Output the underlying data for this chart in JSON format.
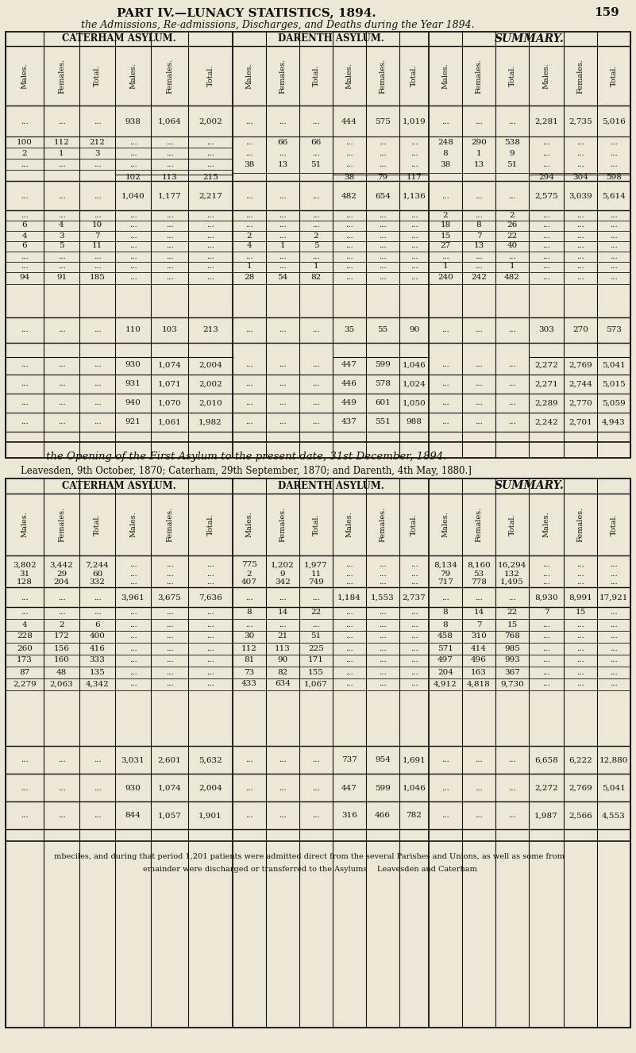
{
  "bg": "#ede8d5",
  "lc": "#111111",
  "title": "PART IV.—LUNACY STATISTICS, 1894.",
  "page_num": "159",
  "sub_italic": "the Admissions, Re-admissions, Discharges, and Deaths during the Year 1894.",
  "between1": "the Opening of the First Asylum to the present date, 31st December, 1894.",
  "between2": "Leavesden, 9th October, 1870; Caterham, 29th September, 1870; and Darenth, 4th May, 1880.]",
  "footer1": "mbeciles, and during that period 1,201 patients were admitted direct from the several Parishes and Unions, as well as some from",
  "footer2": "emainder were discharged or transferred to the Asylums    Leavesden and Caterham",
  "CAT": "CATERHAM ASYLUM.",
  "DAR": "DARENTH ASYLUM.",
  "SUM": "SUMMARY.",
  "col3": [
    "Males.",
    "Females.",
    "Total."
  ],
  "D": "...",
  "top": {
    "r1": [
      "...",
      "...",
      "...",
      "938",
      "1,064",
      "2,002",
      "...",
      "...",
      "...",
      "444",
      "575",
      "1,019",
      "...",
      "...",
      "...",
      "2,281",
      "2,735",
      "5,016"
    ],
    "r2a": [
      "100",
      "112",
      "212",
      "...",
      "...",
      "...",
      "...",
      "66",
      "66",
      "...",
      "...",
      "...",
      "248",
      "290",
      "538",
      "...",
      "...",
      "..."
    ],
    "r2b": [
      "2",
      "1",
      "3",
      "...",
      "...",
      "...",
      "...",
      "...",
      "...",
      "...",
      "...",
      "...",
      "8",
      "1",
      "9",
      "...",
      "...",
      "..."
    ],
    "r2c": [
      "...",
      "...",
      "...",
      "...",
      "...",
      "...",
      "38",
      "13",
      "51",
      "...",
      "...",
      "...",
      "38",
      "13",
      "51",
      "...",
      "...",
      "..."
    ],
    "r2d": [
      "",
      "",
      "",
      "102",
      "113",
      "215",
      "",
      "",
      "",
      "38",
      "79",
      "117",
      "",
      "",
      "",
      "294",
      "304",
      "598"
    ],
    "r3": [
      "...",
      "...",
      "...",
      "1,040",
      "1,177",
      "2,217",
      "...",
      "...",
      "...",
      "482",
      "654",
      "1,136",
      "...",
      "...",
      "...",
      "2,575",
      "3,039",
      "5,614"
    ],
    "r4a": [
      "...",
      "...",
      "...",
      "...",
      "...",
      "...",
      "...",
      "...",
      "...",
      "...",
      "...",
      "...",
      "2",
      "...",
      "2",
      "...",
      "...",
      "..."
    ],
    "r4b": [
      "6",
      "4",
      "10",
      "...",
      "...",
      "...",
      "...",
      "...",
      "...",
      "...",
      "...",
      "...",
      "18",
      "8",
      "26",
      "...",
      "...",
      "..."
    ],
    "r4c": [
      "4",
      "3",
      "7",
      "...",
      "...",
      "...",
      "2",
      "...",
      "2",
      "...",
      "...",
      "...",
      "15",
      "7",
      "22",
      "...",
      "...",
      "..."
    ],
    "r4d": [
      "6",
      "5",
      "11",
      "...",
      "...",
      "...",
      "4",
      "1",
      "5",
      "...",
      "...",
      "...",
      "27",
      "13",
      "40",
      "...",
      "...",
      "..."
    ],
    "r4e": [
      "...",
      "...",
      "...",
      "...",
      "...",
      "...",
      "...",
      "...",
      "...",
      "...",
      "...",
      "...",
      "...",
      "...",
      "...",
      "...",
      "...",
      "..."
    ],
    "r4f": [
      "...",
      "...",
      "...",
      "...",
      "...",
      "...",
      "1",
      "...",
      "1",
      "...",
      "...",
      "...",
      "1",
      "...",
      "1",
      "...",
      "...",
      "..."
    ],
    "r4g": [
      "94",
      "91",
      "185",
      "...",
      "...",
      "...",
      "28",
      "54",
      "82",
      "...",
      "...",
      "...",
      "240",
      "242",
      "482",
      "...",
      "...",
      "..."
    ],
    "r5": [
      "...",
      "...",
      "...",
      "110",
      "103",
      "213",
      "...",
      "...",
      "...",
      "35",
      "55",
      "90",
      "...",
      "...",
      "...",
      "303",
      "270",
      "573"
    ],
    "r6a": [
      "...",
      "...",
      "...",
      "930",
      "1,074",
      "2,004",
      "...",
      "...",
      "...",
      "447",
      "599",
      "1,046",
      "...",
      "...",
      "...",
      "2,272",
      "2,769",
      "5,041"
    ],
    "r6b": [
      "...",
      "...",
      "...",
      "931",
      "1,071",
      "2,002",
      "...",
      "...",
      "...",
      "446",
      "578",
      "1,024",
      "...",
      "...",
      "...",
      "2,271",
      "2,744",
      "5,015"
    ],
    "r6c": [
      "...",
      "...",
      "...",
      "940",
      "1,070",
      "2,010",
      "...",
      "...",
      "...",
      "449",
      "601",
      "1,050",
      "...",
      "...",
      "...",
      "2,289",
      "2,770",
      "5,059"
    ],
    "r6d": [
      "...",
      "...",
      "...",
      "921",
      "1,061",
      "1,982",
      "...",
      "...",
      "...",
      "437",
      "551",
      "988",
      "...",
      "...",
      "...",
      "2,242",
      "2,701",
      "4,943"
    ]
  },
  "bot": {
    "r1": [
      "3,802",
      "3,442",
      "7,244",
      "...",
      "...",
      "...",
      "775",
      "1,202",
      "1,977",
      "...",
      "...",
      "...",
      "8,134",
      "8,160",
      "16,294",
      "...",
      "...",
      "..."
    ],
    "r2a": [
      "31",
      "29",
      "60",
      "...",
      "...",
      "...",
      "2",
      "9",
      "11",
      "...",
      "...",
      "...",
      "79",
      "53",
      "132",
      "...",
      "...",
      "..."
    ],
    "r2b": [
      "128",
      "204",
      "332",
      "...",
      "...",
      "...",
      "407",
      "342",
      "749",
      "...",
      "...",
      "...",
      "717",
      "778",
      "1,495",
      "...",
      "...",
      "..."
    ],
    "r3": [
      "...",
      "...",
      "...",
      "3,961",
      "3,675",
      "7,636",
      "...",
      "...",
      "...",
      "1,184",
      "1,553",
      "2,737",
      "...",
      "...",
      "...",
      "8,930",
      "8,991",
      "17,921"
    ],
    "r4a": [
      "...",
      "...",
      "...",
      "...",
      "...",
      "...",
      "8",
      "14",
      "22",
      "...",
      "...",
      "...",
      "8",
      "14",
      "22",
      "7",
      "15",
      "..."
    ],
    "r4b": [
      "4",
      "2",
      "6",
      "...",
      "...",
      "...",
      "...",
      "...",
      "...",
      "...",
      "...",
      "...",
      "8",
      "7",
      "15",
      "...",
      "...",
      "..."
    ],
    "r4c": [
      "228",
      "172",
      "400",
      "...",
      "...",
      "...",
      "30",
      "21",
      "51",
      "...",
      "...",
      "...",
      "458",
      "310",
      "768",
      "...",
      "...",
      "..."
    ],
    "r4d": [
      "260",
      "156",
      "416",
      "...",
      "...",
      "...",
      "112",
      "113",
      "225",
      "...",
      "...",
      "...",
      "571",
      "414",
      "985",
      "...",
      "...",
      "..."
    ],
    "r4e": [
      "173",
      "160",
      "333",
      "...",
      "...",
      "...",
      "81",
      "90",
      "171",
      "...",
      "...",
      "...",
      "497",
      "496",
      "993",
      "...",
      "...",
      "..."
    ],
    "r4f": [
      "87",
      "48",
      "135",
      "...",
      "...",
      "...",
      "73",
      "82",
      "155",
      "...",
      "...",
      "...",
      "204",
      "163",
      "367",
      "...",
      "...",
      "..."
    ],
    "r4g": [
      "2,279",
      "2,063",
      "4,342",
      "...",
      "...",
      "...",
      "433",
      "634",
      "1,067",
      "...",
      "...",
      "...",
      "4,912",
      "4,818",
      "9,730",
      "...",
      "...",
      "..."
    ],
    "r5": [
      "...",
      "...",
      "...",
      "3,031",
      "2,601",
      "5,632",
      "...",
      "...",
      "...",
      "737",
      "954",
      "1,691",
      "...",
      "...",
      "...",
      "6,658",
      "6,222",
      "12,880"
    ],
    "r6a": [
      "...",
      "...",
      "...",
      "930",
      "1,074",
      "2,004",
      "...",
      "...",
      "...",
      "447",
      "599",
      "1,046",
      "...",
      "...",
      "...",
      "2,272",
      "2,769",
      "5,041"
    ],
    "r6b": [
      "...",
      "...",
      "...",
      "844",
      "1,057",
      "1,901",
      "...",
      "...",
      "...",
      "316",
      "466",
      "782",
      "...",
      "...",
      "...",
      "1,987",
      "2,566",
      "4,553"
    ]
  }
}
